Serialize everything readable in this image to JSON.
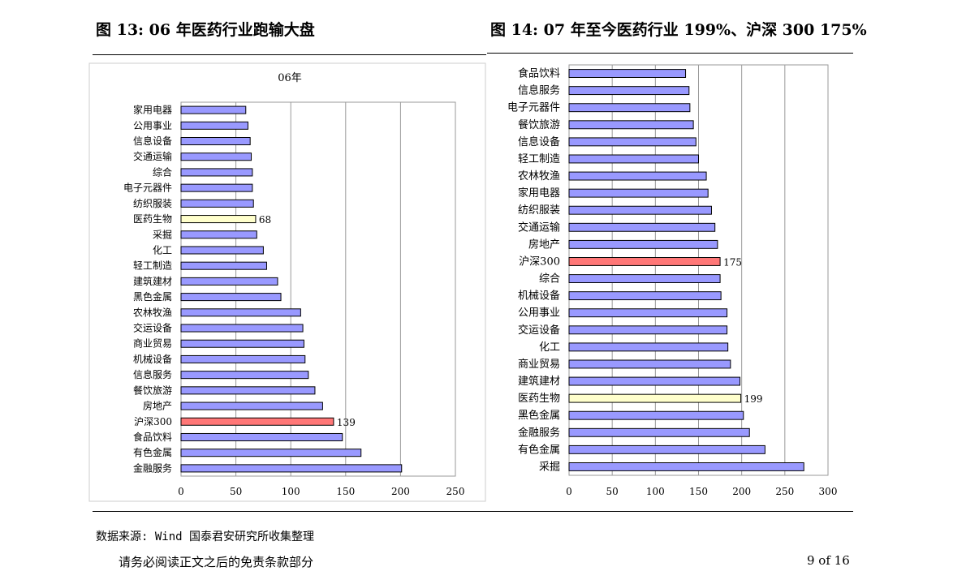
{
  "figures": {
    "left_title": "图 13:  06 年医药行业跑输大盘",
    "right_title": "图 14:  07 年至今医药行业 199%、沪深 300 175%"
  },
  "footer": {
    "source": "数据来源: Wind 国泰君安研究所收集整理",
    "disclaimer": "请务必阅读正文之后的免责条款部分",
    "page": "9 of 16"
  },
  "colors": {
    "bar": "#9999ff",
    "highlight_sector": "#ffffcc",
    "highlight_index": "#ff7777",
    "grid": "#999999"
  },
  "chart_data": [
    {
      "type": "bar",
      "orientation": "horizontal",
      "title": "06年",
      "categories": [
        "家用电器",
        "公用事业",
        "信息设备",
        "交通运输",
        "综合",
        "电子元器件",
        "纺织服装",
        "医药生物",
        "采掘",
        "化工",
        "轻工制造",
        "建筑建材",
        "黑色金属",
        "农林牧渔",
        "交运设备",
        "商业贸易",
        "机械设备",
        "信息服务",
        "餐饮旅游",
        "房地产",
        "沪深300",
        "食品饮料",
        "有色金属",
        "金融服务"
      ],
      "values": [
        59,
        61,
        63,
        64,
        65,
        65,
        66,
        68,
        69,
        75,
        78,
        88,
        91,
        109,
        111,
        112,
        113,
        116,
        122,
        129,
        139,
        147,
        164,
        201
      ],
      "highlights": {
        "医药生物": "sector",
        "沪深300": "index"
      },
      "data_labels": {
        "医药生物": "68",
        "沪深300": "139"
      },
      "xlim": [
        0,
        250
      ],
      "xticks": [
        "0",
        "50",
        "100",
        "150",
        "200",
        "250"
      ],
      "grid": true
    },
    {
      "type": "bar",
      "orientation": "horizontal",
      "title": "",
      "categories": [
        "食品饮料",
        "信息服务",
        "电子元器件",
        "餐饮旅游",
        "信息设备",
        "轻工制造",
        "农林牧渔",
        "家用电器",
        "纺织服装",
        "交通运输",
        "房地产",
        "沪深300",
        "综合",
        "机械设备",
        "公用事业",
        "交运设备",
        "化工",
        "商业贸易",
        "建筑建材",
        "医药生物",
        "黑色金属",
        "金融服务",
        "有色金属",
        "采掘"
      ],
      "values": [
        135,
        139,
        140,
        144,
        147,
        150,
        159,
        161,
        165,
        169,
        172,
        175,
        175,
        176,
        183,
        183,
        184,
        187,
        198,
        199,
        202,
        209,
        227,
        272
      ],
      "highlights": {
        "医药生物": "sector",
        "沪深300": "index"
      },
      "data_labels": {
        "医药生物": "199",
        "沪深300": "175"
      },
      "xlim": [
        0,
        300
      ],
      "xticks": [
        "0",
        "50",
        "100",
        "150",
        "200",
        "250",
        "300"
      ],
      "grid": true
    }
  ]
}
